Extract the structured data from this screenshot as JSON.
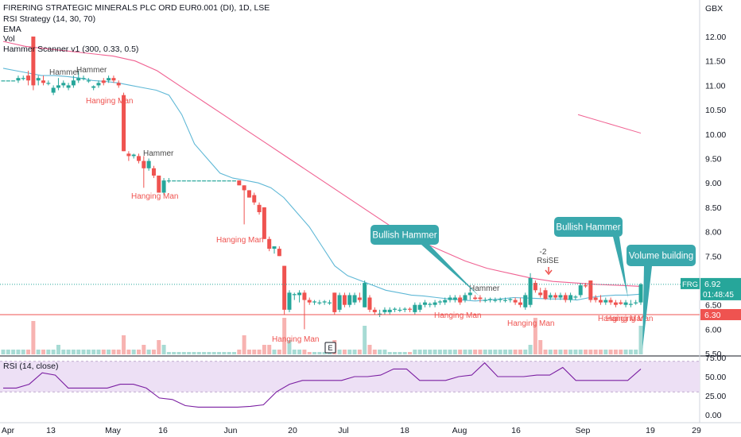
{
  "header": {
    "symbol_title": "FIRERING STRATEGIC MINERALS PLC ORD EUR0.001 (DI), 1D, LSE",
    "indicators": [
      "RSI Strategy (14, 30, 70)",
      "EMA",
      "Vol",
      "Hammer Scanner v1 (300, 0.33, 0.5)"
    ]
  },
  "currency_label": "GBX",
  "rsi_pane_label": "RSI (14, close)",
  "price_tag": {
    "symbol": "FRG",
    "price": "6.92",
    "countdown": "01:48:45"
  },
  "hline_tag": "6.30",
  "earnings_marker": "E",
  "signal": {
    "value": "-2",
    "label": "RsiSE"
  },
  "callouts": [
    {
      "text": "Bullish Hammer"
    },
    {
      "text": "Bullish Hammer"
    },
    {
      "text": "Volume building"
    }
  ],
  "pattern_labels": [
    "Hammer",
    "Hammer",
    "Hammer",
    "Hammer",
    "Hanging Man",
    "Hanging Man",
    "Hanging Man",
    "Hanging Man",
    "Hanging Man",
    "Hanging Man",
    "Hanging Man",
    "Hanging Man"
  ],
  "colors": {
    "up": "#26a69a",
    "down": "#ef5350",
    "ema_fast": "#5fb8d6",
    "ema_slow": "#f06292",
    "rsi": "#7b1fa2",
    "rsi_band": "#ede0f5",
    "callout": "#3aa8ad"
  },
  "chart_data": {
    "type": "candlestick",
    "price_axis": {
      "ticks": [
        "12.00",
        "11.50",
        "11.00",
        "10.50",
        "10.00",
        "9.50",
        "9.00",
        "8.50",
        "8.00",
        "7.50",
        "7.00",
        "6.50",
        "6.00",
        "5.50"
      ],
      "range": [
        5.5,
        12.2
      ]
    },
    "rsi_axis": {
      "ticks": [
        "75.00",
        "50.00",
        "25.00",
        "0.00"
      ],
      "bands": [
        30,
        70
      ]
    },
    "time_axis": [
      "Apr",
      "13",
      "May",
      "16",
      "Jun",
      "20",
      "Jul",
      "18",
      "Aug",
      "16",
      "Sep",
      "19",
      "29"
    ],
    "horizontal_line": 6.3,
    "candles": [
      {
        "o": 11.1,
        "h": 11.1,
        "l": 11.1,
        "c": 11.1
      },
      {
        "o": 11.1,
        "h": 11.1,
        "l": 11.1,
        "c": 11.1
      },
      {
        "o": 11.1,
        "h": 11.1,
        "l": 11.1,
        "c": 11.1
      },
      {
        "o": 11.1,
        "h": 11.2,
        "l": 11.05,
        "c": 11.15
      },
      {
        "o": 11.15,
        "h": 11.2,
        "l": 11.1,
        "c": 11.15
      },
      {
        "o": 11.2,
        "h": 11.3,
        "l": 11.0,
        "c": 11.1
      },
      {
        "o": 12.0,
        "h": 12.0,
        "l": 10.9,
        "c": 11.0
      },
      {
        "o": 11.1,
        "h": 11.2,
        "l": 11.0,
        "c": 11.15
      },
      {
        "o": 11.1,
        "h": 11.2,
        "l": 11.0,
        "c": 11.05
      },
      {
        "o": 11.05,
        "h": 11.1,
        "l": 11.0,
        "c": 11.05
      },
      {
        "o": 10.85,
        "h": 11.0,
        "l": 10.8,
        "c": 10.95
      },
      {
        "o": 10.95,
        "h": 11.15,
        "l": 10.9,
        "c": 11.0
      },
      {
        "o": 11.0,
        "h": 11.1,
        "l": 10.95,
        "c": 11.05
      },
      {
        "o": 10.95,
        "h": 11.05,
        "l": 10.9,
        "c": 11.0
      },
      {
        "o": 11.0,
        "h": 11.2,
        "l": 10.95,
        "c": 11.1
      },
      {
        "o": 11.1,
        "h": 11.3,
        "l": 11.05,
        "c": 11.15
      },
      {
        "o": 11.15,
        "h": 11.2,
        "l": 11.1,
        "c": 11.15
      },
      {
        "o": 11.1,
        "h": 11.15,
        "l": 11.05,
        "c": 11.1
      },
      {
        "o": 10.95,
        "h": 11.0,
        "l": 10.9,
        "c": 10.98
      },
      {
        "o": 11.0,
        "h": 11.1,
        "l": 10.95,
        "c": 11.05
      },
      {
        "o": 11.1,
        "h": 11.15,
        "l": 11.0,
        "c": 11.05
      },
      {
        "o": 11.1,
        "h": 11.2,
        "l": 11.05,
        "c": 11.15
      },
      {
        "o": 11.15,
        "h": 11.2,
        "l": 11.05,
        "c": 11.1
      },
      {
        "o": 11.05,
        "h": 11.1,
        "l": 10.95,
        "c": 11.0
      },
      {
        "o": 10.8,
        "h": 10.85,
        "l": 9.65,
        "c": 9.65
      },
      {
        "o": 9.6,
        "h": 9.65,
        "l": 9.45,
        "c": 9.55
      },
      {
        "o": 9.55,
        "h": 9.6,
        "l": 9.5,
        "c": 9.58
      },
      {
        "o": 9.55,
        "h": 9.6,
        "l": 9.4,
        "c": 9.45
      },
      {
        "o": 9.45,
        "h": 9.55,
        "l": 8.9,
        "c": 9.3
      },
      {
        "o": 9.3,
        "h": 9.5,
        "l": 9.25,
        "c": 9.45
      },
      {
        "o": 9.3,
        "h": 9.35,
        "l": 9.1,
        "c": 9.15
      },
      {
        "o": 9.15,
        "h": 9.15,
        "l": 8.8,
        "c": 8.8
      },
      {
        "o": 8.8,
        "h": 9.1,
        "l": 8.75,
        "c": 9.05
      },
      {
        "o": 9.05,
        "h": 9.1,
        "l": 9.0,
        "c": 9.05
      },
      {
        "o": 9.05,
        "h": 9.05,
        "l": 9.05,
        "c": 9.05
      },
      {
        "o": 9.05,
        "h": 9.05,
        "l": 9.05,
        "c": 9.05
      },
      {
        "o": 9.05,
        "h": 9.05,
        "l": 9.05,
        "c": 9.05
      },
      {
        "o": 9.05,
        "h": 9.05,
        "l": 9.05,
        "c": 9.05
      },
      {
        "o": 9.05,
        "h": 9.05,
        "l": 9.05,
        "c": 9.05
      },
      {
        "o": 9.05,
        "h": 9.05,
        "l": 9.05,
        "c": 9.05
      },
      {
        "o": 9.05,
        "h": 9.05,
        "l": 9.05,
        "c": 9.05
      },
      {
        "o": 9.05,
        "h": 9.05,
        "l": 9.05,
        "c": 9.05
      },
      {
        "o": 9.05,
        "h": 9.05,
        "l": 9.05,
        "c": 9.05
      },
      {
        "o": 9.05,
        "h": 9.05,
        "l": 9.05,
        "c": 9.05
      },
      {
        "o": 9.05,
        "h": 9.05,
        "l": 9.05,
        "c": 9.05
      },
      {
        "o": 9.05,
        "h": 9.05,
        "l": 9.05,
        "c": 9.05
      },
      {
        "o": 9.05,
        "h": 9.05,
        "l": 9.05,
        "c": 9.05
      },
      {
        "o": 9.05,
        "h": 9.05,
        "l": 8.95,
        "c": 8.95
      },
      {
        "o": 8.95,
        "h": 8.95,
        "l": 8.15,
        "c": 8.85
      },
      {
        "o": 8.85,
        "h": 8.85,
        "l": 8.7,
        "c": 8.7
      },
      {
        "o": 8.75,
        "h": 8.8,
        "l": 8.55,
        "c": 8.6
      },
      {
        "o": 8.55,
        "h": 8.6,
        "l": 8.35,
        "c": 8.4
      },
      {
        "o": 8.5,
        "h": 8.5,
        "l": 7.85,
        "c": 7.85
      },
      {
        "o": 7.85,
        "h": 7.9,
        "l": 7.6,
        "c": 7.65
      },
      {
        "o": 7.65,
        "h": 7.7,
        "l": 7.55,
        "c": 7.7
      },
      {
        "o": 7.65,
        "h": 7.7,
        "l": 7.5,
        "c": 7.5
      },
      {
        "o": 7.3,
        "h": 7.3,
        "l": 6.3,
        "c": 6.4
      },
      {
        "o": 6.4,
        "h": 6.8,
        "l": 6.35,
        "c": 6.75
      },
      {
        "o": 6.7,
        "h": 6.75,
        "l": 6.6,
        "c": 6.72
      },
      {
        "o": 6.7,
        "h": 6.8,
        "l": 6.55,
        "c": 6.75
      },
      {
        "o": 6.75,
        "h": 6.8,
        "l": 6.0,
        "c": 6.6
      },
      {
        "o": 6.6,
        "h": 6.65,
        "l": 6.5,
        "c": 6.55
      },
      {
        "o": 6.55,
        "h": 6.6,
        "l": 6.5,
        "c": 6.57
      },
      {
        "o": 6.55,
        "h": 6.6,
        "l": 6.5,
        "c": 6.55
      },
      {
        "o": 6.55,
        "h": 6.6,
        "l": 6.5,
        "c": 6.57
      },
      {
        "o": 6.55,
        "h": 6.6,
        "l": 6.5,
        "c": 6.55
      },
      {
        "o": 6.75,
        "h": 6.75,
        "l": 6.3,
        "c": 6.35
      },
      {
        "o": 6.4,
        "h": 6.75,
        "l": 6.35,
        "c": 6.7
      },
      {
        "o": 6.7,
        "h": 6.75,
        "l": 6.45,
        "c": 6.5
      },
      {
        "o": 6.5,
        "h": 6.75,
        "l": 6.45,
        "c": 6.7
      },
      {
        "o": 6.55,
        "h": 6.75,
        "l": 6.5,
        "c": 6.7
      },
      {
        "o": 6.65,
        "h": 6.75,
        "l": 6.55,
        "c": 6.6
      },
      {
        "o": 6.45,
        "h": 7.0,
        "l": 6.45,
        "c": 6.95
      },
      {
        "o": 6.65,
        "h": 6.7,
        "l": 6.35,
        "c": 6.4
      },
      {
        "o": 6.4,
        "h": 6.45,
        "l": 6.3,
        "c": 6.35
      },
      {
        "o": 6.3,
        "h": 6.4,
        "l": 6.25,
        "c": 6.32
      },
      {
        "o": 6.35,
        "h": 6.45,
        "l": 6.3,
        "c": 6.4
      },
      {
        "o": 6.35,
        "h": 6.45,
        "l": 6.3,
        "c": 6.4
      },
      {
        "o": 6.4,
        "h": 6.45,
        "l": 6.35,
        "c": 6.42
      },
      {
        "o": 6.4,
        "h": 6.45,
        "l": 6.35,
        "c": 6.4
      },
      {
        "o": 6.4,
        "h": 6.45,
        "l": 6.35,
        "c": 6.42
      },
      {
        "o": 6.42,
        "h": 6.45,
        "l": 6.35,
        "c": 6.4
      },
      {
        "o": 6.35,
        "h": 6.55,
        "l": 6.3,
        "c": 6.5
      },
      {
        "o": 6.4,
        "h": 6.55,
        "l": 6.35,
        "c": 6.5
      },
      {
        "o": 6.5,
        "h": 6.6,
        "l": 6.45,
        "c": 6.55
      },
      {
        "o": 6.5,
        "h": 6.55,
        "l": 6.45,
        "c": 6.52
      },
      {
        "o": 6.5,
        "h": 6.6,
        "l": 6.45,
        "c": 6.55
      },
      {
        "o": 6.55,
        "h": 6.6,
        "l": 6.5,
        "c": 6.57
      },
      {
        "o": 6.55,
        "h": 6.65,
        "l": 6.5,
        "c": 6.6
      },
      {
        "o": 6.6,
        "h": 6.7,
        "l": 6.55,
        "c": 6.65
      },
      {
        "o": 6.6,
        "h": 6.7,
        "l": 6.55,
        "c": 6.65
      },
      {
        "o": 6.65,
        "h": 6.7,
        "l": 6.5,
        "c": 6.55
      },
      {
        "o": 6.6,
        "h": 6.75,
        "l": 6.55,
        "c": 6.7
      },
      {
        "o": 6.7,
        "h": 6.8,
        "l": 6.6,
        "c": 6.75
      },
      {
        "o": 6.65,
        "h": 6.7,
        "l": 6.6,
        "c": 6.62
      },
      {
        "o": 6.65,
        "h": 6.7,
        "l": 6.55,
        "c": 6.62
      },
      {
        "o": 6.6,
        "h": 6.65,
        "l": 6.55,
        "c": 6.6
      },
      {
        "o": 6.6,
        "h": 6.65,
        "l": 6.55,
        "c": 6.62
      },
      {
        "o": 6.6,
        "h": 6.65,
        "l": 6.55,
        "c": 6.6
      },
      {
        "o": 6.6,
        "h": 6.65,
        "l": 6.55,
        "c": 6.62
      },
      {
        "o": 6.6,
        "h": 6.65,
        "l": 6.55,
        "c": 6.6
      },
      {
        "o": 6.6,
        "h": 6.65,
        "l": 6.55,
        "c": 6.62
      },
      {
        "o": 6.6,
        "h": 6.65,
        "l": 6.5,
        "c": 6.55
      },
      {
        "o": 6.55,
        "h": 6.65,
        "l": 6.45,
        "c": 6.5
      },
      {
        "o": 6.45,
        "h": 6.75,
        "l": 6.4,
        "c": 6.7
      },
      {
        "o": 6.5,
        "h": 7.15,
        "l": 6.45,
        "c": 7.05
      },
      {
        "o": 6.95,
        "h": 7.0,
        "l": 6.75,
        "c": 6.8
      },
      {
        "o": 6.75,
        "h": 6.85,
        "l": 6.65,
        "c": 6.7
      },
      {
        "o": 6.8,
        "h": 6.85,
        "l": 6.6,
        "c": 6.62
      },
      {
        "o": 6.65,
        "h": 6.75,
        "l": 6.6,
        "c": 6.7
      },
      {
        "o": 6.7,
        "h": 6.75,
        "l": 6.6,
        "c": 6.65
      },
      {
        "o": 6.65,
        "h": 6.75,
        "l": 6.6,
        "c": 6.7
      },
      {
        "o": 6.7,
        "h": 6.75,
        "l": 6.55,
        "c": 6.6
      },
      {
        "o": 6.6,
        "h": 6.75,
        "l": 6.55,
        "c": 6.7
      },
      {
        "o": 6.65,
        "h": 6.7,
        "l": 6.6,
        "c": 6.67
      },
      {
        "o": 6.7,
        "h": 6.95,
        "l": 6.65,
        "c": 6.9
      },
      {
        "o": 6.9,
        "h": 6.95,
        "l": 6.85,
        "c": 6.88
      },
      {
        "o": 7.0,
        "h": 7.0,
        "l": 6.55,
        "c": 6.6
      },
      {
        "o": 6.65,
        "h": 6.7,
        "l": 6.55,
        "c": 6.6
      },
      {
        "o": 6.6,
        "h": 6.7,
        "l": 6.5,
        "c": 6.55
      },
      {
        "o": 6.55,
        "h": 6.65,
        "l": 6.5,
        "c": 6.6
      },
      {
        "o": 6.6,
        "h": 6.65,
        "l": 6.5,
        "c": 6.55
      },
      {
        "o": 6.55,
        "h": 6.6,
        "l": 6.45,
        "c": 6.5
      },
      {
        "o": 6.55,
        "h": 6.6,
        "l": 6.5,
        "c": 6.52
      },
      {
        "o": 6.5,
        "h": 6.6,
        "l": 6.45,
        "c": 6.55
      },
      {
        "o": 6.5,
        "h": 6.6,
        "l": 6.45,
        "c": 6.52
      },
      {
        "o": 6.55,
        "h": 6.6,
        "l": 6.5,
        "c": 6.55
      },
      {
        "o": 6.55,
        "h": 6.95,
        "l": 6.5,
        "c": 6.92
      }
    ],
    "volume": [
      1,
      1,
      1,
      1,
      1,
      1,
      7,
      1,
      1,
      1,
      1,
      2,
      1,
      1,
      1,
      1,
      1,
      1,
      1,
      1,
      1,
      1,
      1,
      1,
      4,
      1,
      1,
      1,
      2,
      1,
      1,
      3,
      2,
      0.5,
      0.5,
      0.5,
      0.5,
      0.5,
      0.5,
      0.5,
      0.5,
      0.5,
      0.5,
      0.5,
      0.5,
      0.5,
      0.5,
      1,
      4,
      1,
      1,
      1,
      2,
      2,
      1,
      1,
      8,
      3,
      1,
      1,
      1,
      0.5,
      0.5,
      0.5,
      0.5,
      0.5,
      3,
      1,
      1,
      1,
      1,
      1,
      6,
      2,
      1,
      1,
      1,
      0.5,
      0.5,
      0.5,
      0.5,
      0.5,
      1,
      1,
      1,
      1,
      1,
      1,
      1,
      1,
      1,
      1,
      1,
      1,
      1,
      1,
      1,
      1,
      1,
      1,
      1,
      1,
      1,
      1,
      1,
      2,
      8,
      3,
      1,
      1,
      1,
      1,
      1,
      1,
      1,
      1,
      1,
      1,
      1,
      1,
      1,
      1,
      1,
      1,
      1,
      1,
      1,
      6
    ],
    "ema_fast": [
      11.35,
      11.3,
      11.25,
      11.2,
      11.2,
      11.18,
      11.15,
      11.1,
      11.08,
      11.05,
      11.0,
      10.95,
      10.9,
      10.8,
      10.4,
      9.8,
      9.5,
      9.2,
      9.1,
      9.05,
      9.0,
      8.9,
      8.7,
      8.4,
      8.1,
      7.7,
      7.3,
      7.1,
      7.0,
      6.9,
      6.8,
      6.75,
      6.7,
      6.68,
      6.65,
      6.62,
      6.6,
      6.58,
      6.6,
      6.62,
      6.65,
      6.64,
      6.63,
      6.62,
      6.62,
      6.6,
      6.65,
      6.68,
      6.7,
      6.7,
      6.72
    ],
    "ema_slow": [
      11.9,
      11.8,
      11.75,
      11.7,
      11.65,
      11.6,
      11.5,
      11.3,
      11.0,
      10.7,
      10.4,
      10.1,
      9.8,
      9.5,
      9.2,
      8.9,
      8.6,
      8.3,
      8.0,
      7.8,
      7.6,
      7.4,
      7.25,
      7.15,
      7.05,
      6.98,
      6.95,
      6.92,
      6.9,
      6.88
    ],
    "rsi": [
      35,
      35,
      40,
      55,
      52,
      35,
      35,
      35,
      35,
      40,
      40,
      35,
      22,
      20,
      12,
      10,
      10,
      10,
      10,
      11,
      13,
      30,
      40,
      45,
      45,
      45,
      45,
      50,
      50,
      52,
      60,
      60,
      45,
      45,
      45,
      50,
      52,
      68,
      50,
      50,
      50,
      52,
      52,
      62,
      45,
      45,
      45,
      45,
      45,
      60
    ],
    "rsi_colors_note": "purple"
  }
}
